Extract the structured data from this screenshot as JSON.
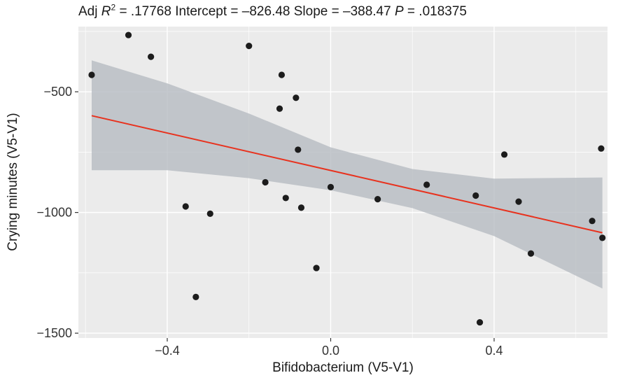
{
  "chart_data": {
    "type": "scatter",
    "title_parts": {
      "adj": "Adj ",
      "r": "R",
      "sup": "2",
      "r2_value": " = .17768 Intercept = –826.48 Slope = –388.47 ",
      "p": "P",
      "p_value": " = .018375"
    },
    "xlabel": "Bifidobacterium (V5-V1)",
    "ylabel": "Crying minutes (V5-V1)",
    "xlim": [
      -0.6175,
      0.6775
    ],
    "ylim": [
      -1520,
      -230
    ],
    "x_ticks": [
      -0.4,
      0.0,
      0.4
    ],
    "x_tick_labels": [
      "−0.4",
      "0.0",
      "0.4"
    ],
    "y_ticks": [
      -500,
      -1000,
      -1500
    ],
    "y_tick_labels": [
      "−500",
      "−1000",
      "−1500"
    ],
    "grid": true,
    "colors": {
      "panel": "#ebebeb",
      "grid": "#ffffff",
      "point": "#1c1c1c",
      "line": "#e8321e",
      "ribbon": "#b6bcc2"
    },
    "points": [
      {
        "x": -0.585,
        "y": -430
      },
      {
        "x": -0.495,
        "y": -265
      },
      {
        "x": -0.44,
        "y": -355
      },
      {
        "x": -0.355,
        "y": -975
      },
      {
        "x": -0.33,
        "y": -1350
      },
      {
        "x": -0.295,
        "y": -1005
      },
      {
        "x": -0.2,
        "y": -310
      },
      {
        "x": -0.16,
        "y": -875
      },
      {
        "x": -0.125,
        "y": -570
      },
      {
        "x": -0.12,
        "y": -430
      },
      {
        "x": -0.11,
        "y": -940
      },
      {
        "x": -0.085,
        "y": -525
      },
      {
        "x": -0.08,
        "y": -740
      },
      {
        "x": -0.072,
        "y": -980
      },
      {
        "x": -0.035,
        "y": -1230
      },
      {
        "x": 0.0,
        "y": -895
      },
      {
        "x": 0.115,
        "y": -945
      },
      {
        "x": 0.235,
        "y": -885
      },
      {
        "x": 0.355,
        "y": -930
      },
      {
        "x": 0.365,
        "y": -1455
      },
      {
        "x": 0.425,
        "y": -760
      },
      {
        "x": 0.46,
        "y": -955
      },
      {
        "x": 0.49,
        "y": -1170
      },
      {
        "x": 0.64,
        "y": -1035
      },
      {
        "x": 0.662,
        "y": -735
      },
      {
        "x": 0.665,
        "y": -1105
      }
    ],
    "fit": {
      "x": [
        -0.585,
        0.665
      ],
      "y": [
        -599,
        -1084
      ]
    },
    "confidence_band": {
      "x": [
        -0.585,
        -0.4,
        -0.2,
        0.0,
        0.2,
        0.4,
        0.665
      ],
      "upper": [
        -370,
        -465,
        -590,
        -730,
        -820,
        -860,
        -855
      ],
      "lower": [
        -825,
        -825,
        -858,
        -908,
        -982,
        -1098,
        -1315
      ]
    }
  }
}
